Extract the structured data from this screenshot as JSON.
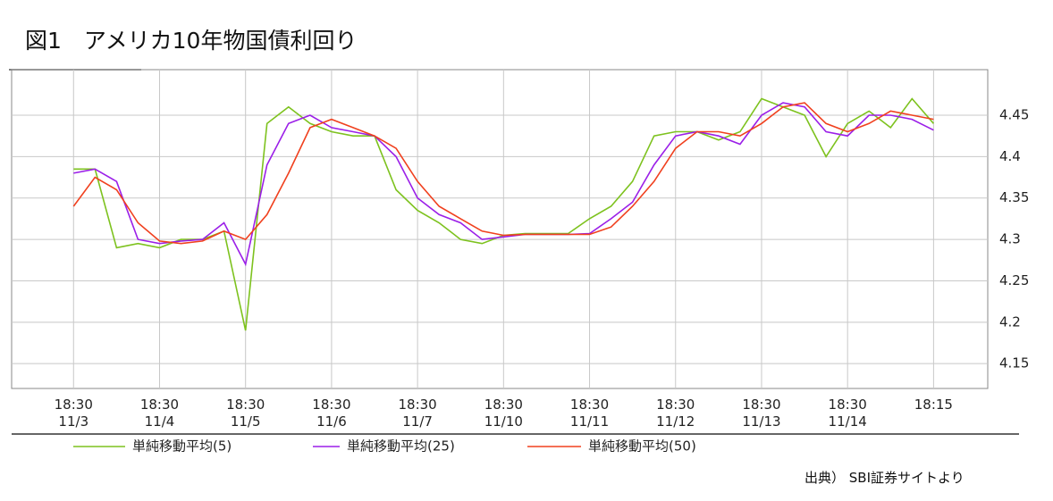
{
  "chart_data": {
    "type": "line",
    "title": "図1　アメリカ10年物国債利回り",
    "source": "出典） SBI証券サイトより",
    "xlim": [
      -0.72,
      10.63
    ],
    "ylim": [
      4.12,
      4.505
    ],
    "grid": true,
    "legend": "bottom",
    "xticks": [
      {
        "value": 0,
        "label": "18:30\n11/3"
      },
      {
        "value": 1,
        "label": "18:30\n11/4"
      },
      {
        "value": 2,
        "label": "18:30\n11/5"
      },
      {
        "value": 3,
        "label": "18:30\n11/6"
      },
      {
        "value": 4,
        "label": "18:30\n11/7"
      },
      {
        "value": 5,
        "label": "18:30\n11/10"
      },
      {
        "value": 6,
        "label": "18:30\n11/11"
      },
      {
        "value": 7,
        "label": "18:30\n11/12"
      },
      {
        "value": 8,
        "label": "18:30\n11/13"
      },
      {
        "value": 9,
        "label": "18:30\n11/14"
      },
      {
        "value": 10,
        "label": "18:15"
      }
    ],
    "yticks": [
      4.15,
      4.2,
      4.25,
      4.3,
      4.35,
      4.4,
      4.45
    ],
    "x": [
      0,
      0.25,
      0.5,
      0.75,
      1,
      1.25,
      1.5,
      1.75,
      2,
      2.25,
      2.5,
      2.75,
      3,
      3.25,
      3.5,
      3.75,
      4,
      4.25,
      4.5,
      4.75,
      5,
      5.25,
      5.5,
      5.75,
      6,
      6.25,
      6.5,
      6.75,
      7,
      7.25,
      7.5,
      7.75,
      8,
      8.25,
      8.5,
      8.75,
      9,
      9.25,
      9.5,
      9.75,
      10
    ],
    "series": [
      {
        "name": "単純移動平均(5)",
        "color": "#7dc21e",
        "values": [
          4.385,
          4.385,
          4.29,
          4.295,
          4.29,
          4.3,
          4.3,
          4.31,
          4.19,
          4.44,
          4.46,
          4.44,
          4.43,
          4.425,
          4.425,
          4.36,
          4.335,
          4.32,
          4.3,
          4.295,
          4.305,
          4.307,
          4.307,
          4.307,
          4.325,
          4.34,
          4.37,
          4.425,
          4.43,
          4.43,
          4.42,
          4.43,
          4.47,
          4.46,
          4.45,
          4.4,
          4.44,
          4.455,
          4.435,
          4.47,
          4.44
        ]
      },
      {
        "name": "単純移動平均(25)",
        "color": "#9b1fe8",
        "values": [
          4.38,
          4.385,
          4.37,
          4.3,
          4.295,
          4.298,
          4.3,
          4.32,
          4.27,
          4.39,
          4.44,
          4.45,
          4.435,
          4.43,
          4.425,
          4.4,
          4.35,
          4.33,
          4.32,
          4.3,
          4.303,
          4.306,
          4.306,
          4.306,
          4.307,
          4.325,
          4.345,
          4.39,
          4.425,
          4.43,
          4.425,
          4.415,
          4.45,
          4.465,
          4.46,
          4.43,
          4.425,
          4.45,
          4.45,
          4.445,
          4.432
        ]
      },
      {
        "name": "単純移動平均(50)",
        "color": "#f0401e",
        "values": [
          4.34,
          4.375,
          4.36,
          4.32,
          4.298,
          4.295,
          4.298,
          4.31,
          4.3,
          4.33,
          4.38,
          4.435,
          4.445,
          4.435,
          4.425,
          4.41,
          4.37,
          4.34,
          4.325,
          4.31,
          4.305,
          4.306,
          4.306,
          4.306,
          4.306,
          4.315,
          4.34,
          4.37,
          4.41,
          4.43,
          4.43,
          4.425,
          4.44,
          4.46,
          4.465,
          4.44,
          4.43,
          4.44,
          4.455,
          4.45,
          4.445
        ]
      }
    ]
  }
}
